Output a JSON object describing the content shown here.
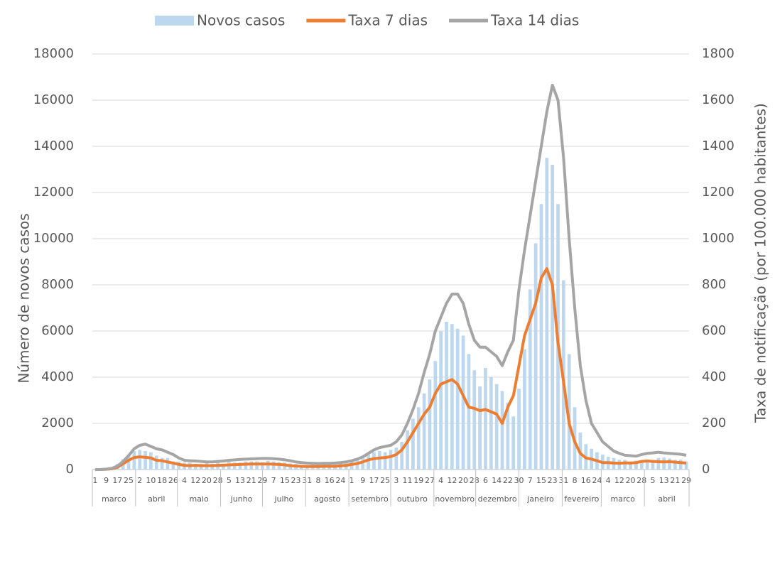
{
  "chart_data": {
    "type": "bar-line",
    "y_label": "Número de novos casos",
    "y2_label": "Taxa de notificação (por 100.000 habitantes)",
    "categories": [
      "1",
      null,
      "9",
      null,
      "17",
      null,
      "25",
      null,
      "2",
      null,
      "10",
      null,
      "18",
      null,
      "26",
      null,
      "4",
      null,
      "12",
      null,
      "20",
      null,
      "28",
      null,
      "5",
      null,
      "13",
      null,
      "21",
      null,
      "29",
      null,
      "7",
      null,
      "15",
      null,
      "23",
      null,
      "31",
      null,
      "8",
      null,
      "16",
      null,
      "24",
      null,
      "1",
      null,
      "9",
      null,
      "17",
      null,
      "25",
      null,
      "3",
      null,
      "11",
      null,
      "19",
      null,
      "27",
      null,
      "4",
      null,
      "12",
      null,
      "20",
      null,
      "28",
      null,
      "6",
      null,
      "14",
      null,
      "22",
      null,
      "30",
      null,
      "7",
      null,
      "15",
      null,
      "23",
      null,
      "31",
      null,
      "8",
      null,
      "16",
      null,
      "24",
      null,
      "4",
      null,
      "12",
      null,
      "20",
      null,
      "28",
      null,
      "5",
      null,
      "13",
      null,
      "21",
      null,
      "29"
    ],
    "months": [
      "marco",
      "abril",
      "maio",
      "junho",
      "julho",
      "agosto",
      "setembro",
      "outubro",
      "novembro",
      "dezembro",
      "janeiro",
      "fevereiro",
      "marco",
      "abril"
    ],
    "series": [
      {
        "name": "Novos casos",
        "kind": "bar",
        "axis": "y",
        "color": "#bdd7ee",
        "values": [
          0,
          5,
          20,
          80,
          250,
          450,
          650,
          800,
          850,
          800,
          750,
          600,
          500,
          500,
          350,
          350,
          300,
          300,
          250,
          250,
          280,
          250,
          300,
          250,
          330,
          300,
          300,
          350,
          350,
          350,
          320,
          380,
          350,
          320,
          300,
          260,
          250,
          200,
          200,
          230,
          200,
          230,
          250,
          220,
          250,
          300,
          380,
          450,
          600,
          650,
          750,
          800,
          750,
          850,
          950,
          1200,
          1700,
          2200,
          2700,
          3300,
          3900,
          4700,
          6000,
          6400,
          6300,
          6100,
          5800,
          5000,
          4300,
          3600,
          4400,
          4000,
          3700,
          3400,
          2900,
          2300,
          3500,
          5200,
          7800,
          9800,
          11500,
          13500,
          13200,
          11500,
          8200,
          5000,
          2700,
          1600,
          1100,
          900,
          750,
          650,
          550,
          500,
          420,
          420,
          350,
          380,
          400,
          350,
          420,
          500,
          520,
          480,
          420,
          430,
          350
        ]
      },
      {
        "name": "Taxa 7 dias",
        "kind": "line",
        "axis": "y2",
        "color": "#ed7d31",
        "values": [
          0,
          0,
          1,
          3,
          10,
          25,
          40,
          52,
          55,
          53,
          50,
          40,
          38,
          33,
          28,
          22,
          18,
          17,
          18,
          17,
          17,
          17,
          18,
          19,
          20,
          21,
          22,
          23,
          24,
          24,
          24,
          24,
          23,
          22,
          20,
          17,
          15,
          14,
          13,
          13,
          13,
          14,
          14,
          14,
          16,
          18,
          22,
          26,
          33,
          42,
          47,
          50,
          52,
          56,
          65,
          85,
          120,
          160,
          200,
          240,
          270,
          330,
          370,
          380,
          390,
          370,
          320,
          270,
          265,
          255,
          260,
          250,
          240,
          200,
          270,
          320,
          450,
          580,
          650,
          720,
          830,
          870,
          800,
          550,
          380,
          200,
          120,
          70,
          50,
          45,
          38,
          30,
          30,
          28,
          27,
          29,
          28,
          30,
          35,
          37,
          35,
          34,
          33,
          34,
          32,
          30,
          28
        ]
      },
      {
        "name": "Taxa 14 dias",
        "kind": "line",
        "axis": "y2",
        "color": "#a5a5a5",
        "values": [
          0,
          0,
          2,
          5,
          15,
          35,
          60,
          90,
          105,
          110,
          100,
          90,
          85,
          75,
          65,
          50,
          40,
          38,
          37,
          35,
          33,
          33,
          35,
          37,
          40,
          42,
          44,
          45,
          46,
          47,
          48,
          48,
          47,
          45,
          42,
          38,
          33,
          30,
          28,
          27,
          26,
          27,
          27,
          28,
          30,
          33,
          38,
          45,
          55,
          70,
          85,
          95,
          100,
          105,
          120,
          150,
          200,
          260,
          330,
          420,
          500,
          600,
          660,
          720,
          760,
          760,
          720,
          630,
          560,
          530,
          530,
          510,
          490,
          450,
          510,
          560,
          780,
          950,
          1100,
          1250,
          1400,
          1550,
          1665,
          1600,
          1350,
          1000,
          700,
          450,
          300,
          200,
          160,
          120,
          100,
          80,
          70,
          62,
          60,
          58,
          65,
          70,
          72,
          75,
          72,
          70,
          68,
          66,
          62
        ]
      }
    ],
    "ylim": [
      0,
      18000
    ],
    "yticks": [
      0,
      2000,
      4000,
      6000,
      8000,
      10000,
      12000,
      14000,
      16000,
      18000
    ],
    "y2lim": [
      0,
      1800
    ],
    "y2ticks": [
      0,
      200,
      400,
      600,
      800,
      1000,
      1200,
      1400,
      1600,
      1800
    ],
    "grid": true,
    "legend": "top"
  }
}
